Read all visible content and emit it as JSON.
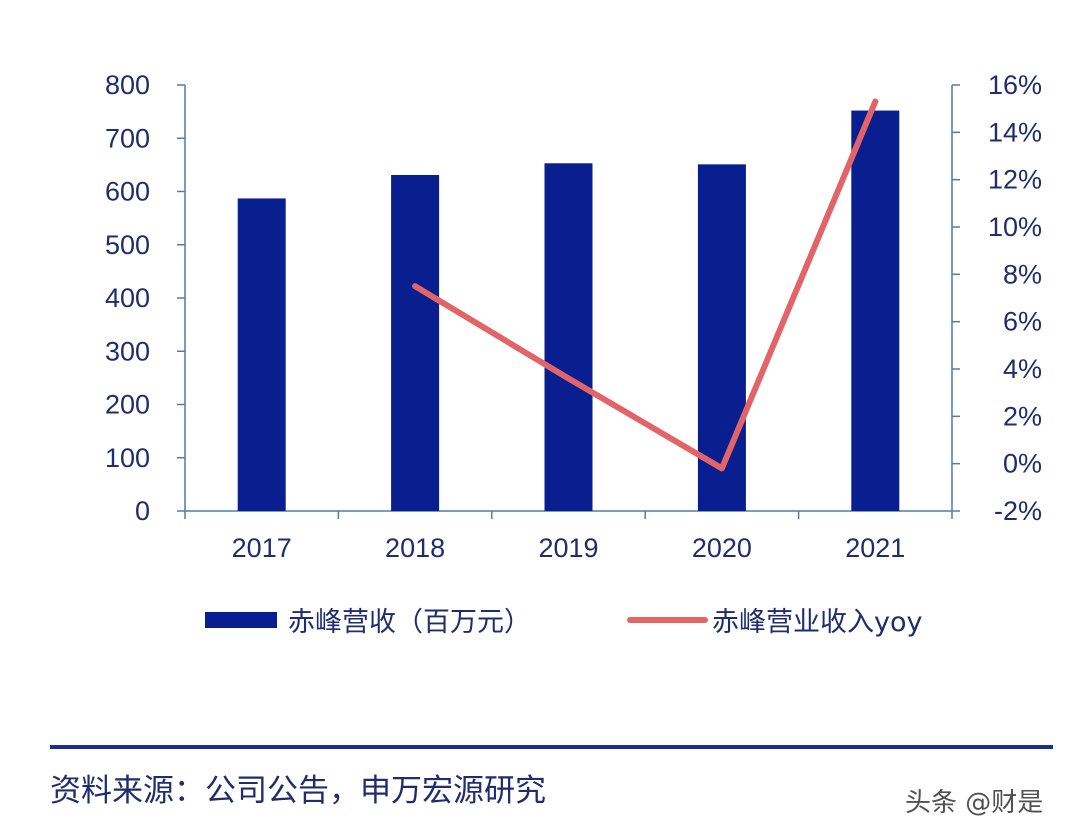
{
  "chart_data": {
    "type": "bar+line",
    "categories": [
      "2017",
      "2018",
      "2019",
      "2020",
      "2021"
    ],
    "series": [
      {
        "name": "赤峰营收（百万元）",
        "type": "bar",
        "axis": "left",
        "values": [
          587,
          631,
          653,
          651,
          752
        ],
        "color": "#0a1f8f"
      },
      {
        "name": "赤峰营业收入yoy",
        "type": "line",
        "axis": "right",
        "values": [
          null,
          7.5,
          3.6,
          -0.2,
          15.3
        ],
        "color": "#e36467"
      }
    ],
    "y_left": {
      "min": 0,
      "max": 800,
      "ticks": [
        "0",
        "100",
        "200",
        "300",
        "400",
        "500",
        "600",
        "700",
        "800"
      ]
    },
    "y_right": {
      "min": -2,
      "max": 16,
      "ticks": [
        "-2%",
        "0%",
        "2%",
        "4%",
        "6%",
        "8%",
        "10%",
        "12%",
        "14%",
        "16%"
      ]
    },
    "axis_color": "#4e7fa3"
  },
  "footer": {
    "source": "资料来源：公司公告，申万宏源研究",
    "watermark": "头条 @财是"
  }
}
